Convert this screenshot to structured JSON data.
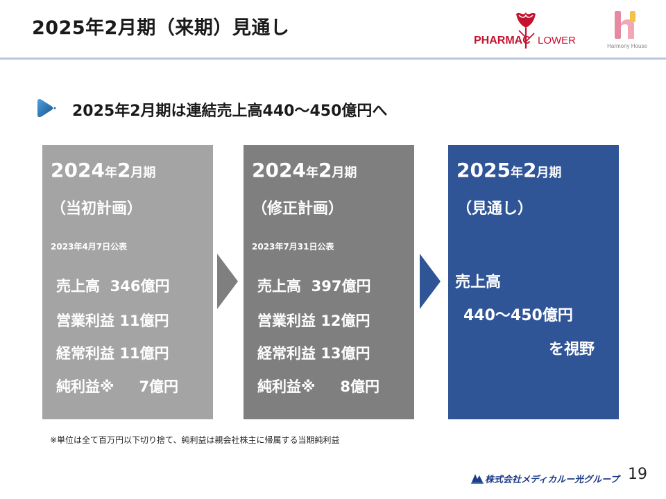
{
  "header": {
    "title": "2025年2月期（来期）見通し",
    "logo_pharmaflower_left": "PHARMAC",
    "logo_pharmaflower_right": "LOWER",
    "logo_harmony_sub": "Harmony House",
    "rule_color": "#b7c6de"
  },
  "subtitle": "2025年2月期は連結売上高440～450億円へ",
  "boxes": [
    {
      "period_year": "2024",
      "period_nen": "年",
      "period_month": "2",
      "period_suffix": "月期",
      "plan": "（当初計画）",
      "date": "2023年4月7日公表",
      "rows": [
        {
          "label": "売上高",
          "value": "346億円"
        },
        {
          "label": "営業利益",
          "value": "11億円"
        },
        {
          "label": "経常利益",
          "value": "11億円"
        },
        {
          "label": "純利益※",
          "value": "7億円"
        }
      ],
      "color": "#a4a4a4"
    },
    {
      "period_year": "2024",
      "period_nen": "年",
      "period_month": "2",
      "period_suffix": "月期",
      "plan": "（修正計画）",
      "date": "2023年7月31日公表",
      "rows": [
        {
          "label": "売上高",
          "value": "397億円"
        },
        {
          "label": "営業利益",
          "value": "12億円"
        },
        {
          "label": "経常利益",
          "value": "13億円"
        },
        {
          "label": "純利益※",
          "value": "8億円"
        }
      ],
      "color": "#7f7f7f"
    },
    {
      "period_year": "2025",
      "period_nen": "年",
      "period_month": "2",
      "period_suffix": "月期",
      "plan": "（見通し）",
      "line1": "売上高",
      "line2": "440～450億円",
      "line3": "を視野",
      "color": "#2f5597"
    }
  ],
  "note": "※単位は全て百万円以下切り捨て、純利益は親会社株主に帰属する当期純利益",
  "footer": {
    "company": "株式会社メディカルー光グループ",
    "page_number": "19"
  }
}
